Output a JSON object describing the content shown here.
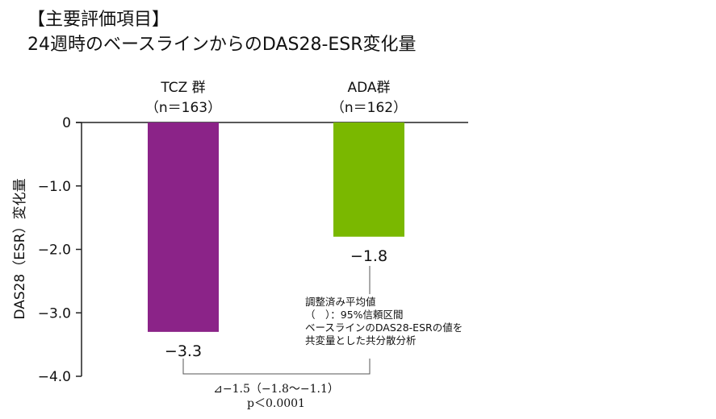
{
  "title_line1": "【主要評価項目】",
  "title_line2": "24週時のベースラインからのDAS28-ESR変化量",
  "chart_data": {
    "type": "bar",
    "title": "24週時のベースラインからのDAS28-ESR変化量",
    "ylabel": "DAS28（ESR）変化量",
    "ylim": [
      -4.0,
      0
    ],
    "yticks": [
      "0",
      "−1.0",
      "−2.0",
      "−3.0",
      "−4.0"
    ],
    "ytick_values": [
      0,
      -1.0,
      -2.0,
      -3.0,
      -4.0
    ],
    "categories": [
      {
        "name": "TCZ 群",
        "n_label": "（n＝163）",
        "value": -3.3,
        "value_label": "−3.3",
        "color": "#8b2388"
      },
      {
        "name": "ADA群",
        "n_label": "（n＝162）",
        "value": -1.8,
        "value_label": "−1.8",
        "color": "#7ab800"
      }
    ],
    "note_lines": [
      "調整済み平均値",
      "（　）：95%信頼区間",
      "ベースラインのDAS28-ESRの値を",
      "共変量とした共分散分析"
    ],
    "difference_label": "⊿−1.5（−1.8〜−1.1）",
    "p_value_label": "p＜0.0001"
  }
}
